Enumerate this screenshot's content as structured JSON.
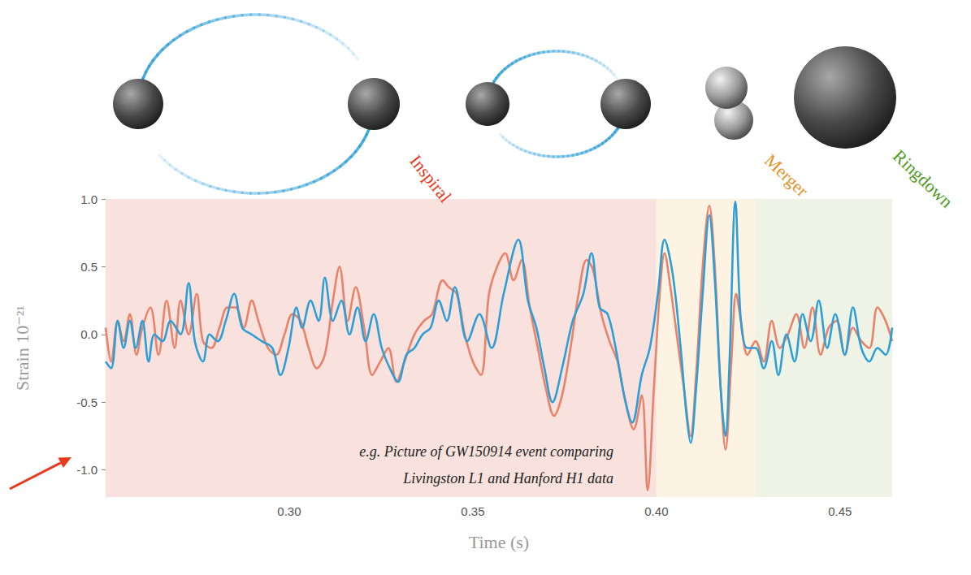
{
  "chart_data": {
    "type": "line",
    "xlabel": "Time (s)",
    "ylabel": "Strain 10⁻²¹",
    "xlim": [
      0.25,
      0.4642
    ],
    "xticks": [
      {
        "value": 0.3,
        "label": "0.30"
      },
      0.35,
      {
        "value": 0.4,
        "label": "0.40"
      },
      0.45
    ],
    "ylim": [
      -1.2,
      1.0
    ],
    "yticks": [
      {
        "value": -1,
        "label": "-1.0"
      },
      -0.5,
      {
        "value": 0,
        "label": "0.0"
      },
      0.5,
      {
        "value": 1,
        "label": "1.0"
      }
    ],
    "grid": false,
    "annotation": [
      "e.g. Picture of GW150914 event comparing",
      "Livingston L1 and Hanford H1 data"
    ],
    "phases": [
      {
        "label": "Inspiral",
        "start": 0.25,
        "end": 0.4,
        "color": "#f9e2dd",
        "label_color": "#e5391d"
      },
      {
        "label": "Merger",
        "start": 0.4,
        "end": 0.427,
        "color": "#fdf3e2",
        "label_color": "#e0952a"
      },
      {
        "label": "Ringdown",
        "start": 0.427,
        "end": 0.4642,
        "color": "#eef3e5",
        "label_color": "#4f9a1e"
      }
    ],
    "series": [
      {
        "color": "#e8826b",
        "x": [
          0.25,
          0.2515,
          0.2533,
          0.2549,
          0.2566,
          0.2584,
          0.26,
          0.2622,
          0.2644,
          0.2666,
          0.2688,
          0.2704,
          0.2726,
          0.2748,
          0.2765,
          0.2788,
          0.281,
          0.2832,
          0.2854,
          0.2876,
          0.2898,
          0.2916,
          0.2942,
          0.2965,
          0.2987,
          0.3009,
          0.3031,
          0.3053,
          0.3075,
          0.3097,
          0.3119,
          0.3137,
          0.3159,
          0.3181,
          0.3204,
          0.3226,
          0.3248,
          0.327,
          0.3292,
          0.3314,
          0.3341,
          0.3367,
          0.3389,
          0.3418,
          0.3434,
          0.3456,
          0.3478,
          0.35,
          0.3522,
          0.3544,
          0.3566,
          0.3588,
          0.3611,
          0.3633,
          0.3655,
          0.3677,
          0.3699,
          0.3721,
          0.3743,
          0.3766,
          0.3788,
          0.381,
          0.3827,
          0.385,
          0.3872,
          0.3894,
          0.3916,
          0.3938,
          0.396,
          0.3976,
          0.3993,
          0.4009,
          0.4022,
          0.4038,
          0.406,
          0.4075,
          0.4093,
          0.4108,
          0.4126,
          0.4144,
          0.4159,
          0.4175,
          0.4188,
          0.4204,
          0.4217,
          0.423,
          0.4248,
          0.427,
          0.4292,
          0.4314,
          0.4336,
          0.4358,
          0.4381,
          0.4403,
          0.4425,
          0.4447,
          0.4469,
          0.4491,
          0.4513,
          0.4535,
          0.4558,
          0.458,
          0.4602,
          0.4624,
          0.4642
        ],
        "values": [
          0.05,
          -0.2,
          0.1,
          -0.05,
          0.15,
          -0.15,
          0.05,
          0.2,
          -0.15,
          0.25,
          -0.1,
          0.25,
          0,
          0.3,
          -0.05,
          -0.1,
          0.05,
          0.2,
          0.2,
          0.05,
          0.25,
          0.1,
          -0.1,
          -0.15,
          0,
          0.15,
          0.1,
          -0.1,
          -0.25,
          -0.15,
          0.25,
          0.5,
          0.1,
          0.35,
          0.05,
          -0.3,
          -0.2,
          -0.1,
          -0.35,
          -0.2,
          0,
          0.1,
          0.15,
          0.4,
          0.35,
          0.3,
          0,
          -0.2,
          -0.3,
          0.3,
          0.5,
          0.6,
          0.4,
          0.55,
          0.2,
          -0.1,
          -0.4,
          -0.6,
          -0.45,
          -0.1,
          0.3,
          0.55,
          0.48,
          0.15,
          -0.05,
          -0.2,
          -0.5,
          -0.7,
          -0.45,
          -1.15,
          -0.4,
          0.3,
          0.6,
          0.35,
          -0.1,
          -0.4,
          -0.75,
          -0.3,
          0.5,
          0.95,
          0.5,
          -0.4,
          -0.85,
          -0.2,
          0.3,
          0.1,
          -0.15,
          -0.05,
          -0.2,
          0.1,
          -0.1,
          0,
          0.15,
          -0.1,
          0.2,
          -0.15,
          0.05,
          0.1,
          -0.15,
          0.05,
          -0.05,
          -0.1,
          0.2,
          0.1,
          -0.05
        ]
      },
      {
        "color": "#2e9fd6",
        "x": [
          0.25,
          0.2515,
          0.2533,
          0.2549,
          0.2566,
          0.2582,
          0.26,
          0.2617,
          0.2633,
          0.2655,
          0.2677,
          0.2704,
          0.2726,
          0.2743,
          0.2765,
          0.2783,
          0.2805,
          0.2827,
          0.285,
          0.2872,
          0.2898,
          0.2925,
          0.2954,
          0.2976,
          0.2998,
          0.302,
          0.3035,
          0.3058,
          0.308,
          0.3097,
          0.3119,
          0.3142,
          0.3164,
          0.3186,
          0.3208,
          0.323,
          0.3252,
          0.3274,
          0.3296,
          0.3319,
          0.3341,
          0.3363,
          0.3385,
          0.3407,
          0.3429,
          0.3451,
          0.3485,
          0.3518,
          0.3551,
          0.3584,
          0.3624,
          0.365,
          0.3673,
          0.3695,
          0.3717,
          0.3743,
          0.3772,
          0.3801,
          0.3823,
          0.3845,
          0.3867,
          0.3889,
          0.3912,
          0.3934,
          0.396,
          0.3982,
          0.4004,
          0.4022,
          0.4044,
          0.4066,
          0.4082,
          0.4093,
          0.4108,
          0.4126,
          0.4144,
          0.4159,
          0.4175,
          0.4188,
          0.4199,
          0.4215,
          0.423,
          0.4248,
          0.427,
          0.4292,
          0.4314,
          0.4332,
          0.4354,
          0.4376,
          0.4398,
          0.442,
          0.4442,
          0.4465,
          0.4487,
          0.4513,
          0.4535,
          0.4558,
          0.458,
          0.4602,
          0.4624,
          0.4642
        ],
        "values": [
          -0.2,
          -0.25,
          0.1,
          -0.1,
          0.1,
          -0.1,
          0.1,
          -0.2,
          0,
          -0.05,
          0.1,
          0,
          0.38,
          -0.05,
          -0.2,
          0,
          -0.05,
          0.1,
          0.3,
          0.05,
          0,
          -0.05,
          -0.1,
          -0.3,
          -0.1,
          0.2,
          0.05,
          0.25,
          0.1,
          0.42,
          0.1,
          0.25,
          0,
          0.2,
          -0.05,
          0.15,
          -0.1,
          -0.25,
          -0.35,
          -0.15,
          -0.1,
          0,
          0.05,
          0.25,
          0.1,
          0.35,
          -0.05,
          0.15,
          -0.1,
          0.3,
          0.7,
          0.25,
          0.05,
          -0.25,
          -0.5,
          -0.25,
          0.1,
          0.3,
          0.6,
          0.2,
          0.15,
          -0.1,
          -0.45,
          -0.65,
          -0.3,
          -0.1,
          0.3,
          0.7,
          0.45,
          -0.1,
          -0.6,
          -0.8,
          -0.4,
          0.3,
          0.88,
          0.4,
          -0.4,
          -0.75,
          -0.2,
          0.98,
          0.1,
          -0.1,
          -0.1,
          -0.25,
          -0.05,
          -0.3,
          0,
          -0.2,
          0.15,
          -0.05,
          0.25,
          -0.1,
          0.15,
          -0.15,
          0.2,
          -0.1,
          -0.2,
          -0.1,
          -0.15,
          0.05
        ]
      }
    ]
  }
}
